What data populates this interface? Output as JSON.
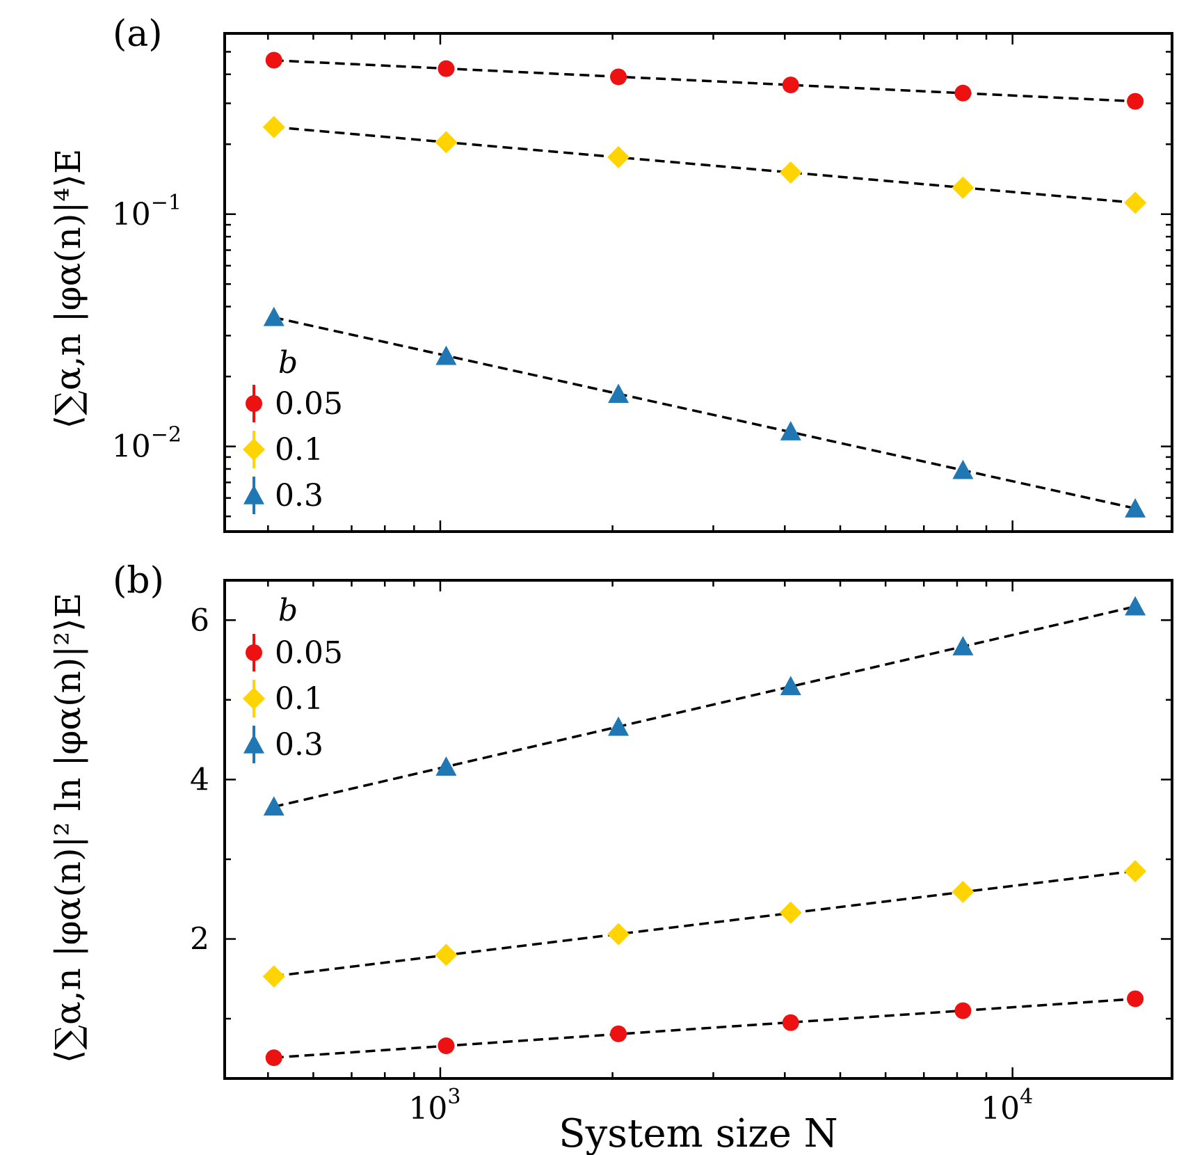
{
  "chart_data": [
    {
      "type": "scatter",
      "panel_label": "(a)",
      "xscale": "log",
      "yscale": "log",
      "xlim": [
        420,
        19000
      ],
      "ylim": [
        0.0043,
        0.6
      ],
      "ylabel": "⟨∑α,n |φα(n)|⁴⟩E",
      "xlabel": "",
      "yticks": [
        {
          "value": 0.1,
          "mantissa": "10",
          "exp": "−1"
        },
        {
          "value": 0.01,
          "mantissa": "10",
          "exp": "−2"
        }
      ],
      "x": [
        512,
        1024,
        2048,
        4096,
        8192,
        16384
      ],
      "series": [
        {
          "name": "0.05",
          "marker": "circle",
          "color": "#ee1111",
          "values": [
            0.46,
            0.423,
            0.39,
            0.36,
            0.332,
            0.306
          ]
        },
        {
          "name": "0.1",
          "marker": "diamond",
          "color": "#ffd400",
          "values": [
            0.237,
            0.204,
            0.176,
            0.151,
            0.13,
            0.112
          ]
        },
        {
          "name": "0.3",
          "marker": "triangle",
          "color": "#1f77b4",
          "values": [
            0.036,
            0.0245,
            0.0168,
            0.0116,
            0.0079,
            0.0054
          ]
        }
      ],
      "legend": {
        "title": "b",
        "position": "lower-left"
      }
    },
    {
      "type": "scatter",
      "panel_label": "(b)",
      "xscale": "log",
      "yscale": "linear",
      "xlim": [
        420,
        19000
      ],
      "ylim": [
        0.25,
        6.5
      ],
      "ylabel": "⟨∑α,n |φα(n)|² ln |φα(n)|²⟩E",
      "xlabel": "System size N",
      "yticks": [
        2,
        4,
        6
      ],
      "xticks": [
        {
          "value": 1000,
          "mantissa": "10",
          "exp": "3"
        },
        {
          "value": 10000,
          "mantissa": "10",
          "exp": "4"
        }
      ],
      "x": [
        512,
        1024,
        2048,
        4096,
        8192,
        16384
      ],
      "series": [
        {
          "name": "0.05",
          "marker": "circle",
          "color": "#ee1111",
          "values": [
            0.51,
            0.66,
            0.81,
            0.95,
            1.1,
            1.25
          ]
        },
        {
          "name": "0.1",
          "marker": "diamond",
          "color": "#ffd400",
          "values": [
            1.53,
            1.8,
            2.06,
            2.33,
            2.59,
            2.85
          ]
        },
        {
          "name": "0.3",
          "marker": "triangle",
          "color": "#1f77b4",
          "values": [
            3.66,
            4.16,
            4.66,
            5.17,
            5.67,
            6.17
          ]
        }
      ],
      "legend": {
        "title": "b",
        "position": "top-left"
      }
    }
  ]
}
